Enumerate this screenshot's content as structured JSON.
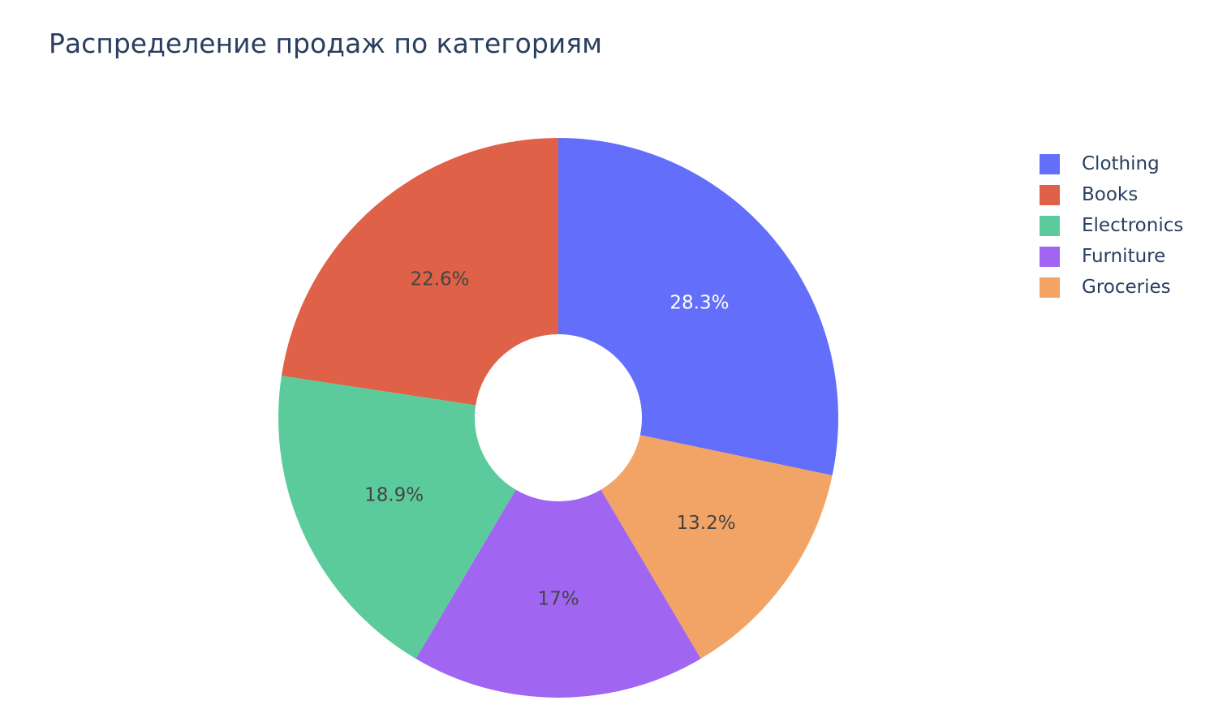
{
  "chart_data": {
    "type": "pie",
    "title": "Распределение продаж по категориям",
    "hole": true,
    "legend_position": "top-right",
    "slices": [
      {
        "label": "Clothing",
        "percent": 28.3,
        "display": "28.3%",
        "color": "#636efa",
        "text_color": "#ffffff"
      },
      {
        "label": "Groceries",
        "percent": 13.2,
        "display": "13.2%",
        "color": "#f2a467",
        "text_color": "#444444"
      },
      {
        "label": "Furniture",
        "percent": 17.0,
        "display": "17%",
        "color": "#a066f2",
        "text_color": "#444444"
      },
      {
        "label": "Electronics",
        "percent": 18.9,
        "display": "18.9%",
        "color": "#5ccb9c",
        "text_color": "#444444"
      },
      {
        "label": "Books",
        "percent": 22.6,
        "display": "22.6%",
        "color": "#de6148",
        "text_color": "#444444"
      }
    ],
    "legend": [
      {
        "label": "Clothing",
        "color": "#636efa"
      },
      {
        "label": "Books",
        "color": "#de6148"
      },
      {
        "label": "Electronics",
        "color": "#5ccb9c"
      },
      {
        "label": "Furniture",
        "color": "#a066f2"
      },
      {
        "label": "Groceries",
        "color": "#f2a467"
      }
    ]
  }
}
